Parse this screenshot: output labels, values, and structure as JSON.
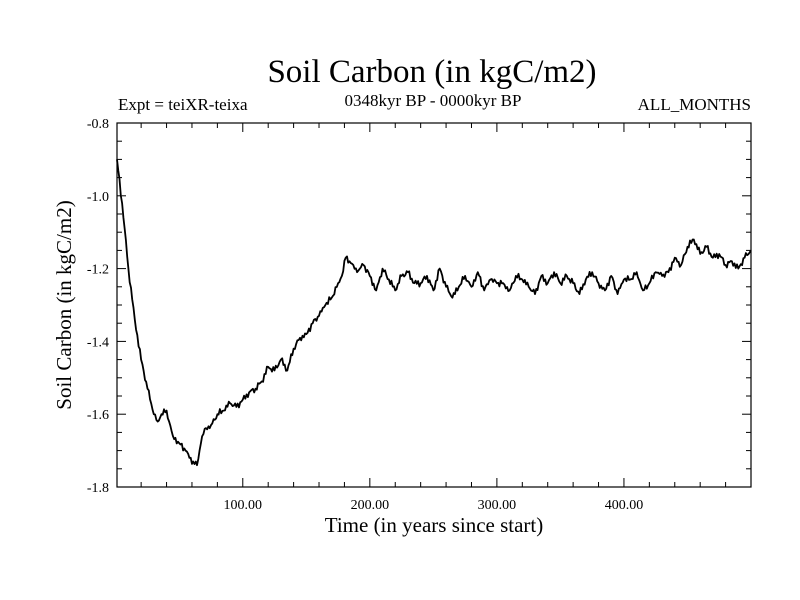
{
  "chart_data": {
    "type": "line",
    "title": "Soil Carbon (in kgC/m2)",
    "subtitle_left": "Expt = teiXR-teixa",
    "subtitle_center": "0348kyr BP - 0000kyr BP",
    "subtitle_right": "ALL_MONTHS",
    "xlabel": "Time (in years since start)",
    "ylabel": "Soil Carbon (in kgC/m2)",
    "xlim": [
      1,
      500
    ],
    "ylim": [
      -1.8,
      -0.8
    ],
    "xticks": [
      100,
      200,
      300,
      400
    ],
    "xtick_labels": [
      "100.00",
      "200.00",
      "300.00",
      "400.00"
    ],
    "yticks": [
      -0.8,
      -1.0,
      -1.2,
      -1.4,
      -1.6,
      -1.8
    ],
    "ytick_labels": [
      "-0.8",
      "-1.0",
      "-1.2",
      "-1.4",
      "-1.6",
      "-1.8"
    ],
    "grid": false,
    "series": [
      {
        "name": "Soil Carbon",
        "color": "#000000",
        "x": [
          1,
          5,
          10,
          15,
          20,
          25,
          30,
          33,
          36,
          40,
          45,
          50,
          55,
          58,
          61,
          64,
          67,
          70,
          75,
          80,
          85,
          90,
          95,
          100,
          105,
          110,
          115,
          120,
          125,
          130,
          135,
          140,
          145,
          150,
          155,
          160,
          165,
          170,
          175,
          178,
          181,
          184,
          187,
          190,
          195,
          200,
          205,
          210,
          215,
          220,
          225,
          230,
          235,
          240,
          245,
          250,
          255,
          260,
          265,
          270,
          275,
          280,
          285,
          290,
          295,
          300,
          305,
          310,
          315,
          320,
          325,
          330,
          335,
          340,
          345,
          350,
          355,
          360,
          365,
          370,
          375,
          380,
          385,
          390,
          395,
          400,
          405,
          410,
          415,
          420,
          425,
          430,
          435,
          440,
          445,
          450,
          455,
          460,
          465,
          470,
          475,
          480,
          485,
          490,
          495,
          500
        ],
        "values": [
          -0.9,
          -1.02,
          -1.2,
          -1.34,
          -1.45,
          -1.53,
          -1.6,
          -1.62,
          -1.6,
          -1.59,
          -1.66,
          -1.68,
          -1.7,
          -1.72,
          -1.73,
          -1.74,
          -1.68,
          -1.64,
          -1.63,
          -1.6,
          -1.59,
          -1.57,
          -1.58,
          -1.56,
          -1.54,
          -1.53,
          -1.51,
          -1.47,
          -1.48,
          -1.45,
          -1.48,
          -1.42,
          -1.39,
          -1.38,
          -1.35,
          -1.33,
          -1.3,
          -1.28,
          -1.24,
          -1.22,
          -1.17,
          -1.18,
          -1.19,
          -1.21,
          -1.19,
          -1.22,
          -1.26,
          -1.2,
          -1.23,
          -1.26,
          -1.22,
          -1.21,
          -1.24,
          -1.24,
          -1.22,
          -1.26,
          -1.2,
          -1.25,
          -1.28,
          -1.25,
          -1.22,
          -1.25,
          -1.21,
          -1.26,
          -1.23,
          -1.24,
          -1.24,
          -1.26,
          -1.22,
          -1.23,
          -1.25,
          -1.27,
          -1.22,
          -1.24,
          -1.21,
          -1.24,
          -1.22,
          -1.24,
          -1.27,
          -1.23,
          -1.21,
          -1.24,
          -1.26,
          -1.22,
          -1.27,
          -1.23,
          -1.23,
          -1.21,
          -1.26,
          -1.24,
          -1.21,
          -1.22,
          -1.21,
          -1.17,
          -1.19,
          -1.14,
          -1.12,
          -1.16,
          -1.14,
          -1.17,
          -1.16,
          -1.19,
          -1.18,
          -1.2,
          -1.17,
          -1.15
        ]
      }
    ]
  }
}
